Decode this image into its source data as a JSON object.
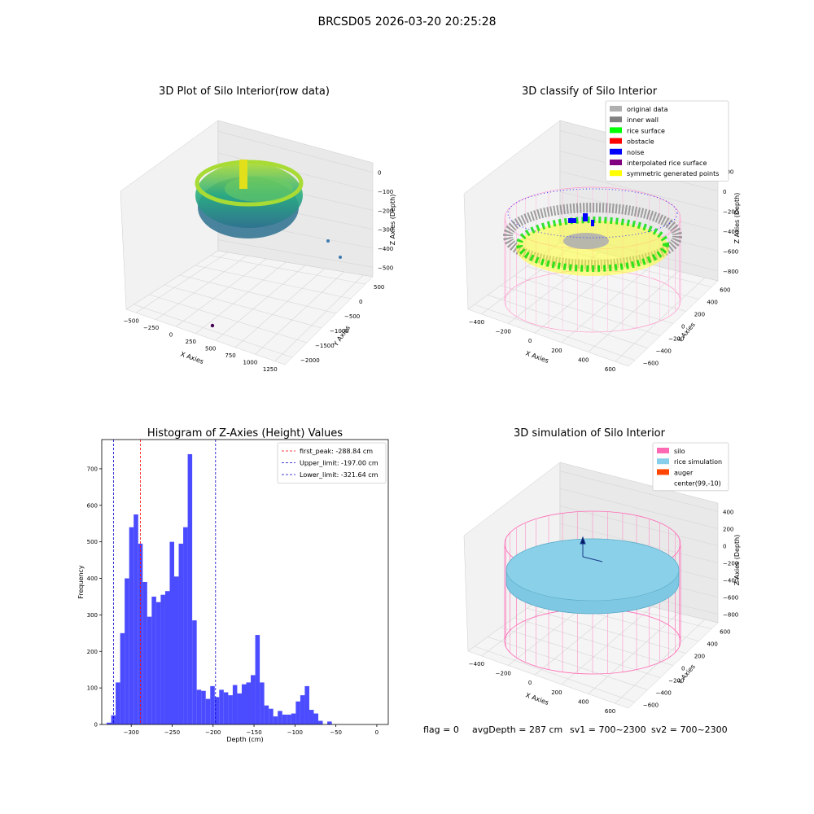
{
  "suptitle": "BRCSD05 2026-03-20 20:25:28",
  "footer": {
    "flag": "flag = 0",
    "avg_depth": "avgDepth = 287 cm",
    "sv1": "sv1 = 700~2300",
    "sv2": "sv2 = 700~2300"
  },
  "colors": {
    "histogram_bar": "#4b4bff",
    "peak_line": "#ff0000",
    "limit_line": "#0000cc",
    "silo_wire": "#ff69b4",
    "rice_sim": "#7ec8e3",
    "pane": "#f2f2f2"
  },
  "chart_data": [
    {
      "type": "scatter",
      "projection": "3d",
      "title": "3D Plot of Silo Interior(row data)",
      "xlabel": "X Axies",
      "ylabel": "Y Axies",
      "zlabel": "Z Axies (Depth)",
      "x_ticks": [
        "−500",
        "−250",
        "0",
        "250",
        "500",
        "750",
        "1000",
        "1250"
      ],
      "y_ticks": [
        "500",
        "0",
        "−500",
        "−1000",
        "−1500",
        "−2000"
      ],
      "z_ticks": [
        "0",
        "−100",
        "−200",
        "−300",
        "−400",
        "−500"
      ],
      "colormap": "viridis",
      "outliers": [
        {
          "x": 480,
          "y": -1500,
          "z": -500
        },
        {
          "x": 1050,
          "y": 0,
          "z": -300
        },
        {
          "x": 1200,
          "y": -200,
          "z": -380
        }
      ]
    },
    {
      "type": "scatter",
      "projection": "3d",
      "title": "3D classify of Silo Interior",
      "xlabel": "X Axies",
      "ylabel": "Y Axies",
      "zlabel": "Z Axies (Depth)",
      "x_ticks": [
        "−400",
        "−200",
        "0",
        "200",
        "400",
        "600"
      ],
      "y_ticks": [
        "600",
        "400",
        "200",
        "0",
        "−200",
        "−400",
        "−600"
      ],
      "z_ticks": [
        "200",
        "0",
        "−200",
        "−400",
        "−600",
        "−800"
      ],
      "legend_position": "top-right",
      "legend": [
        {
          "label": "original data",
          "color": "#b0b0b0"
        },
        {
          "label": "inner wall",
          "color": "#808080"
        },
        {
          "label": "rice surface",
          "color": "#00ff00"
        },
        {
          "label": "obstacle",
          "color": "#ff0000"
        },
        {
          "label": "noise",
          "color": "#0000ff"
        },
        {
          "label": "interpolated rice surface",
          "color": "#800080"
        },
        {
          "label": "symmetric generated points",
          "color": "#ffff00"
        }
      ]
    },
    {
      "type": "bar",
      "title": "Histogram of Z-Axies (Height) Values",
      "xlabel": "Depth (cm)",
      "ylabel": "Frequency",
      "xlim": [
        -336,
        14
      ],
      "ylim": [
        0,
        780
      ],
      "x_ticks": [
        -300,
        -250,
        -200,
        -150,
        -100,
        -50,
        0
      ],
      "x_tick_labels": [
        "−300",
        "−250",
        "−200",
        "−150",
        "−100",
        "−50",
        "0"
      ],
      "y_ticks": [
        0,
        100,
        200,
        300,
        400,
        500,
        600,
        700
      ],
      "bin_start": -330,
      "bin_width": 5.5,
      "values": [
        5,
        25,
        115,
        250,
        400,
        540,
        575,
        495,
        390,
        295,
        350,
        335,
        355,
        365,
        500,
        405,
        495,
        540,
        740,
        285,
        95,
        92,
        70,
        105,
        75,
        95,
        88,
        80,
        108,
        85,
        110,
        115,
        135,
        245,
        115,
        52,
        43,
        22,
        37,
        27,
        27,
        30,
        63,
        80,
        105,
        40,
        30,
        10,
        0,
        8
      ],
      "legend_position": "top-right",
      "lines": [
        {
          "label": "first_peak: -288.84 cm",
          "x": -288.84,
          "color": "#ff0000"
        },
        {
          "label": "Upper_limit: -197.00 cm",
          "x": -197.0,
          "color": "#0000cc"
        },
        {
          "label": "Lower_limit: -321.64 cm",
          "x": -321.64,
          "color": "#0000cc"
        }
      ]
    },
    {
      "type": "scatter",
      "projection": "3d",
      "title": "3D simulation of Silo Interior",
      "xlabel": "X Axies",
      "ylabel": "Y Axies",
      "zlabel": "Z Axies (Depth)",
      "x_ticks": [
        "−400",
        "−200",
        "0",
        "200",
        "400",
        "600"
      ],
      "y_ticks": [
        "600",
        "400",
        "200",
        "0",
        "−200",
        "−400",
        "−600"
      ],
      "z_ticks": [
        "400",
        "200",
        "0",
        "−200",
        "−400",
        "−600",
        "−800"
      ],
      "legend_position": "top-right",
      "legend": [
        {
          "label": "silo",
          "color": "#ff69b4"
        },
        {
          "label": "rice simulation",
          "color": "#87ceeb"
        },
        {
          "label": "auger",
          "color": "#ff4500"
        },
        {
          "label": "center(99,-10)",
          "color": ""
        }
      ]
    }
  ]
}
